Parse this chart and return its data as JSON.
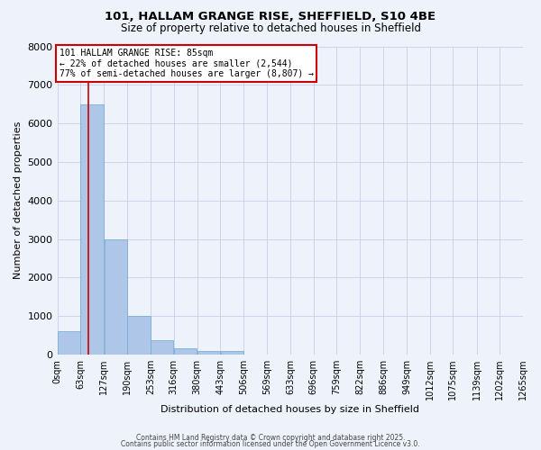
{
  "title": "101, HALLAM GRANGE RISE, SHEFFIELD, S10 4BE",
  "subtitle": "Size of property relative to detached houses in Sheffield",
  "xlabel": "Distribution of detached houses by size in Sheffield",
  "ylabel": "Number of detached properties",
  "bar_color": "#aec6e8",
  "bar_edgecolor": "#7bafd4",
  "background_color": "#eef2fb",
  "grid_color": "#c8cfe8",
  "vline_x": 85,
  "vline_color": "#cc0000",
  "bin_edges": [
    0,
    63,
    127,
    190,
    253,
    316,
    380,
    443,
    506,
    569,
    633,
    696,
    759,
    822,
    886,
    949,
    1012,
    1075,
    1139,
    1202,
    1265
  ],
  "bin_labels": [
    "0sqm",
    "63sqm",
    "127sqm",
    "190sqm",
    "253sqm",
    "316sqm",
    "380sqm",
    "443sqm",
    "506sqm",
    "569sqm",
    "633sqm",
    "696sqm",
    "759sqm",
    "822sqm",
    "886sqm",
    "949sqm",
    "1012sqm",
    "1075sqm",
    "1139sqm",
    "1202sqm",
    "1265sqm"
  ],
  "bar_heights": [
    600,
    6500,
    3000,
    1000,
    380,
    160,
    100,
    100,
    0,
    0,
    0,
    0,
    0,
    0,
    0,
    0,
    0,
    0,
    0,
    0
  ],
  "ylim": [
    0,
    8000
  ],
  "yticks": [
    0,
    1000,
    2000,
    3000,
    4000,
    5000,
    6000,
    7000,
    8000
  ],
  "annotation_text": "101 HALLAM GRANGE RISE: 85sqm\n← 22% of detached houses are smaller (2,544)\n77% of semi-detached houses are larger (8,807) →",
  "annotation_box_color": "#ffffff",
  "annotation_box_edgecolor": "#cc0000",
  "footer_line1": "Contains HM Land Registry data © Crown copyright and database right 2025.",
  "footer_line2": "Contains public sector information licensed under the Open Government Licence v3.0."
}
